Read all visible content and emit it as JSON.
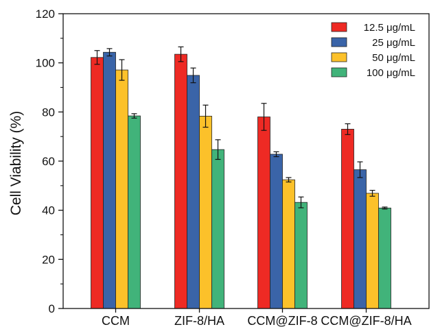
{
  "chart_data": {
    "type": "bar",
    "categories": [
      "CCM",
      "ZIF-8/HA",
      "CCM@ZIF-8",
      "CCM@ZIF-8/HA"
    ],
    "series": [
      {
        "name": "12.5 μg/mL",
        "color": "#ee2a24",
        "values": [
          102.2,
          103.5,
          78.0,
          73.0
        ],
        "errors": [
          2.8,
          3.0,
          5.5,
          2.2
        ]
      },
      {
        "name": "25 μg/mL",
        "color": "#3a64a8",
        "values": [
          104.3,
          94.9,
          62.8,
          56.5
        ],
        "errors": [
          1.5,
          3.0,
          1.0,
          3.2
        ]
      },
      {
        "name": "50 μg/mL",
        "color": "#fcc12a",
        "values": [
          97.1,
          78.3,
          52.4,
          46.9
        ],
        "errors": [
          4.2,
          4.5,
          0.9,
          1.2
        ]
      },
      {
        "name": "100 μg/mL",
        "color": "#41b37a",
        "values": [
          78.4,
          64.7,
          43.2,
          40.9
        ],
        "errors": [
          0.9,
          4.0,
          2.2,
          0.4
        ]
      }
    ],
    "xlabel": "",
    "ylabel": "Cell Viability (%)",
    "ylim": [
      0,
      120
    ],
    "yticks": [
      0,
      20,
      40,
      60,
      80,
      100,
      120
    ],
    "legend_position": "top-right",
    "grid": false
  }
}
